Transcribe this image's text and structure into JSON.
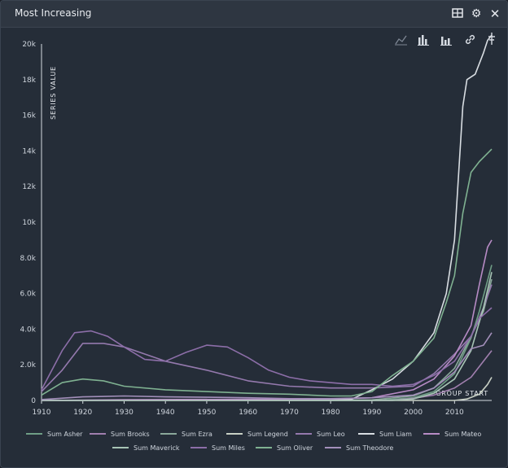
{
  "header": {
    "title": "Most Increasing",
    "icons": [
      "table-icon",
      "gear-icon",
      "close-icon"
    ]
  },
  "toolbar": {
    "icons": [
      "line-chart-icon",
      "bar-chart-icon",
      "stacked-bar-icon",
      "link-icon",
      "fork-icon"
    ]
  },
  "chart_data": {
    "type": "line",
    "xlabel": "GROUP START",
    "ylabel": "SERIES VALUE",
    "xlim": [
      1910,
      2019
    ],
    "ylim": [
      0,
      20000
    ],
    "x_ticks": [
      "1910",
      "1920",
      "1930",
      "1940",
      "1950",
      "1960",
      "1970",
      "1980",
      "1990",
      "2000",
      "2010"
    ],
    "y_ticks": [
      "0",
      "2.0k",
      "4.0k",
      "6.0k",
      "8.0k",
      "10k",
      "12k",
      "14k",
      "16k",
      "18k",
      "20k"
    ],
    "grid": false,
    "legend_position": "bottom",
    "series": [
      {
        "name": "Sum Asher",
        "color": "#6f9e86",
        "points": [
          [
            1910,
            0
          ],
          [
            1992,
            10
          ],
          [
            2000,
            150
          ],
          [
            2005,
            500
          ],
          [
            2010,
            1500
          ],
          [
            2014,
            3500
          ],
          [
            2016,
            5000
          ],
          [
            2019,
            7600
          ]
        ]
      },
      {
        "name": "Sum Brooks",
        "color": "#a07fae",
        "points": [
          [
            1910,
            0
          ],
          [
            1995,
            10
          ],
          [
            2000,
            120
          ],
          [
            2005,
            300
          ],
          [
            2010,
            700
          ],
          [
            2014,
            1300
          ],
          [
            2017,
            2200
          ],
          [
            2019,
            2800
          ]
        ]
      },
      {
        "name": "Sum Ezra",
        "color": "#8aa89a",
        "points": [
          [
            1910,
            10
          ],
          [
            1990,
            30
          ],
          [
            2000,
            250
          ],
          [
            2005,
            700
          ],
          [
            2010,
            1800
          ],
          [
            2014,
            3600
          ],
          [
            2017,
            5000
          ],
          [
            2019,
            6800
          ]
        ]
      },
      {
        "name": "Sum Legend",
        "color": "#c8d0c4",
        "points": [
          [
            1910,
            0
          ],
          [
            2010,
            0
          ],
          [
            2013,
            80
          ],
          [
            2016,
            350
          ],
          [
            2018,
            900
          ],
          [
            2019,
            1300
          ]
        ]
      },
      {
        "name": "Sum Leo",
        "color": "#9479ad",
        "points": [
          [
            1910,
            500
          ],
          [
            1915,
            1700
          ],
          [
            1920,
            3200
          ],
          [
            1925,
            3200
          ],
          [
            1930,
            3000
          ],
          [
            1940,
            2200
          ],
          [
            1950,
            1700
          ],
          [
            1960,
            1100
          ],
          [
            1970,
            800
          ],
          [
            1980,
            700
          ],
          [
            1990,
            700
          ],
          [
            2000,
            800
          ],
          [
            2005,
            1500
          ],
          [
            2010,
            2600
          ],
          [
            2014,
            3600
          ],
          [
            2017,
            5200
          ],
          [
            2019,
            6500
          ]
        ]
      },
      {
        "name": "Sum Liam",
        "color": "#d8dde2",
        "points": [
          [
            1910,
            0
          ],
          [
            1985,
            60
          ],
          [
            1990,
            600
          ],
          [
            1995,
            1200
          ],
          [
            2000,
            2200
          ],
          [
            2005,
            3800
          ],
          [
            2008,
            6000
          ],
          [
            2010,
            9000
          ],
          [
            2012,
            16500
          ],
          [
            2013,
            18000
          ],
          [
            2015,
            18300
          ],
          [
            2017,
            19500
          ],
          [
            2018,
            20200
          ],
          [
            2019,
            20500
          ]
        ]
      },
      {
        "name": "Sum Mateo",
        "color": "#b78bc5",
        "points": [
          [
            1910,
            0
          ],
          [
            1930,
            40
          ],
          [
            1980,
            80
          ],
          [
            1990,
            150
          ],
          [
            2000,
            600
          ],
          [
            2005,
            1200
          ],
          [
            2010,
            2500
          ],
          [
            2014,
            4200
          ],
          [
            2016,
            6500
          ],
          [
            2018,
            8600
          ],
          [
            2019,
            9000
          ]
        ]
      },
      {
        "name": "Sum Maverick",
        "color": "#a7c4b5",
        "points": [
          [
            1910,
            0
          ],
          [
            1995,
            0
          ],
          [
            2000,
            80
          ],
          [
            2005,
            400
          ],
          [
            2010,
            1200
          ],
          [
            2014,
            2800
          ],
          [
            2017,
            5200
          ],
          [
            2019,
            7200
          ]
        ]
      },
      {
        "name": "Sum Miles",
        "color": "#8c6ea8",
        "points": [
          [
            1910,
            600
          ],
          [
            1915,
            2800
          ],
          [
            1918,
            3800
          ],
          [
            1922,
            3900
          ],
          [
            1926,
            3600
          ],
          [
            1930,
            3000
          ],
          [
            1935,
            2300
          ],
          [
            1940,
            2200
          ],
          [
            1945,
            2700
          ],
          [
            1950,
            3100
          ],
          [
            1955,
            3000
          ],
          [
            1960,
            2400
          ],
          [
            1965,
            1700
          ],
          [
            1970,
            1300
          ],
          [
            1975,
            1100
          ],
          [
            1980,
            1000
          ],
          [
            1985,
            900
          ],
          [
            1990,
            900
          ],
          [
            1995,
            800
          ],
          [
            2000,
            900
          ],
          [
            2005,
            1400
          ],
          [
            2010,
            2200
          ],
          [
            2014,
            3600
          ],
          [
            2016,
            4600
          ],
          [
            2019,
            5200
          ]
        ]
      },
      {
        "name": "Sum Oliver",
        "color": "#7fb191",
        "points": [
          [
            1910,
            300
          ],
          [
            1915,
            1000
          ],
          [
            1920,
            1200
          ],
          [
            1925,
            1100
          ],
          [
            1930,
            800
          ],
          [
            1940,
            600
          ],
          [
            1950,
            500
          ],
          [
            1960,
            400
          ],
          [
            1970,
            350
          ],
          [
            1980,
            250
          ],
          [
            1985,
            250
          ],
          [
            1990,
            500
          ],
          [
            1995,
            1400
          ],
          [
            2000,
            2200
          ],
          [
            2005,
            3500
          ],
          [
            2008,
            5500
          ],
          [
            2010,
            7000
          ],
          [
            2012,
            10500
          ],
          [
            2014,
            12800
          ],
          [
            2016,
            13400
          ],
          [
            2019,
            14100
          ]
        ]
      },
      {
        "name": "Sum Theodore",
        "color": "#a38fba",
        "points": [
          [
            1910,
            50
          ],
          [
            1920,
            200
          ],
          [
            1930,
            250
          ],
          [
            1940,
            200
          ],
          [
            1950,
            180
          ],
          [
            1960,
            150
          ],
          [
            1970,
            100
          ],
          [
            1980,
            100
          ],
          [
            1990,
            150
          ],
          [
            2000,
            300
          ],
          [
            2005,
            700
          ],
          [
            2010,
            1600
          ],
          [
            2014,
            2900
          ],
          [
            2017,
            3100
          ],
          [
            2019,
            3800
          ]
        ]
      }
    ]
  }
}
